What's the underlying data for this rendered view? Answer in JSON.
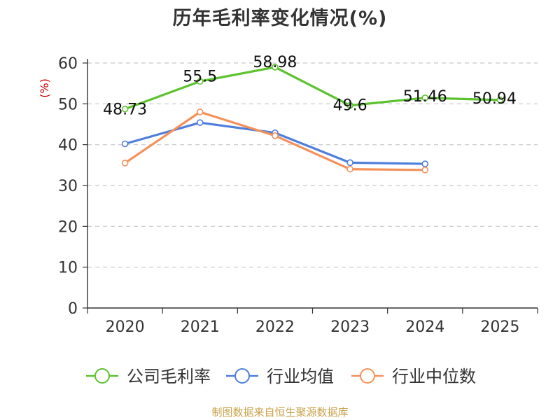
{
  "chart_data": {
    "type": "line",
    "title": "历年毛利率变化情况(%)",
    "ylabel": "(%)",
    "xlabel": "",
    "categories": [
      "2020",
      "2021",
      "2022",
      "2023",
      "2024",
      "2025"
    ],
    "ylim": [
      0,
      60
    ],
    "yticks": [
      0,
      10,
      20,
      30,
      40,
      50,
      60
    ],
    "grid": true,
    "legend_position": "bottom",
    "series": [
      {
        "name": "公司毛利率",
        "color": "#5cc22e",
        "values": [
          48.73,
          55.5,
          58.98,
          49.6,
          51.46,
          50.94
        ],
        "labels": [
          "48.73",
          "55.5",
          "58.98",
          "49.6",
          "51.46",
          "50.94"
        ]
      },
      {
        "name": "行业均值",
        "color": "#4e7fdc",
        "values": [
          40.2,
          45.4,
          42.9,
          35.6,
          35.3,
          null
        ]
      },
      {
        "name": "行业中位数",
        "color": "#f5905a",
        "values": [
          35.5,
          48.0,
          42.2,
          34.0,
          33.8,
          null
        ]
      }
    ]
  },
  "footer": {
    "source": "制图数据来自恒生聚源数据库"
  }
}
